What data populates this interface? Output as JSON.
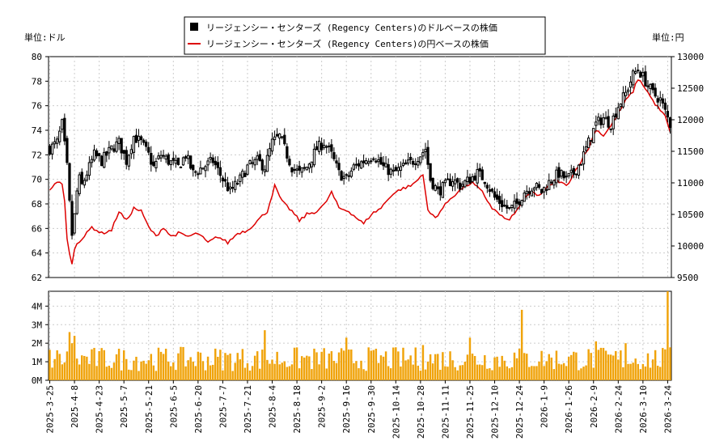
{
  "chart_data": {
    "type": "candlestick",
    "legend": [
      {
        "label": "リージェンシー・センターズ (Regency Centers)のドルベースの株価",
        "color": "#000000",
        "marker": "square"
      },
      {
        "label": "リージェンシー・センターズ (Regency Centers)の円ベースの株価",
        "color": "#dd0000",
        "marker": "line"
      }
    ],
    "left_unit": "単位:ドル",
    "right_unit": "単位:円",
    "price_axis_usd": {
      "min": 62,
      "max": 80,
      "ticks": [
        62,
        64,
        66,
        68,
        70,
        72,
        74,
        76,
        78,
        80
      ]
    },
    "price_axis_jpy": {
      "min": 9500,
      "max": 13000,
      "ticks": [
        9500,
        10000,
        10500,
        11000,
        11500,
        12000,
        12500,
        13000
      ]
    },
    "volume_axis": {
      "min": 0,
      "max": 4800000,
      "ticks": [
        0,
        1000000,
        2000000,
        3000000,
        4000000
      ],
      "tick_labels": [
        "0M",
        "1M",
        "2M",
        "3M",
        "4M"
      ]
    },
    "x_tick_labels": [
      "2025-3-25",
      "2025-4-8",
      "2025-4-23",
      "2025-5-7",
      "2025-5-21",
      "2025-6-5",
      "2025-6-20",
      "2025-7-7",
      "2025-7-21",
      "2025-8-4",
      "2025-8-18",
      "2025-9-2",
      "2025-9-16",
      "2025-9-30",
      "2025-10-14",
      "2025-10-28",
      "2025-11-11",
      "2025-11-25",
      "2025-12-10",
      "2025-12-24",
      "2026-1-9",
      "2026-1-26",
      "2026-2-9",
      "2026-2-24",
      "2026-3-10",
      "2026-3-24"
    ],
    "x_tick_index": [
      0,
      10,
      20,
      30,
      40,
      50,
      60,
      70,
      80,
      90,
      100,
      110,
      120,
      130,
      140,
      150,
      160,
      170,
      180,
      190,
      200,
      210,
      220,
      230,
      240,
      250
    ],
    "n_days": 252,
    "usd_close_anchors": [
      [
        0,
        72.5
      ],
      [
        3,
        73.0
      ],
      [
        5,
        74.5
      ],
      [
        7,
        71.0
      ],
      [
        8,
        68.0
      ],
      [
        9,
        65.5
      ],
      [
        10,
        67.0
      ],
      [
        11,
        69.0
      ],
      [
        12,
        70.0
      ],
      [
        13,
        69.5
      ],
      [
        16,
        71.0
      ],
      [
        18,
        72.0
      ],
      [
        21,
        71.5
      ],
      [
        25,
        72.5
      ],
      [
        28,
        73.0
      ],
      [
        31,
        71.5
      ],
      [
        34,
        73.5
      ],
      [
        37,
        73.0
      ],
      [
        40,
        72.0
      ],
      [
        42,
        71.0
      ],
      [
        45,
        72.0
      ],
      [
        48,
        71.5
      ],
      [
        52,
        71.0
      ],
      [
        55,
        72.0
      ],
      [
        58,
        70.5
      ],
      [
        62,
        71.0
      ],
      [
        66,
        71.5
      ],
      [
        70,
        70.0
      ],
      [
        73,
        69.0
      ],
      [
        77,
        70.0
      ],
      [
        80,
        71.0
      ],
      [
        84,
        71.5
      ],
      [
        87,
        71.0
      ],
      [
        90,
        73.0
      ],
      [
        93,
        73.5
      ],
      [
        95,
        72.5
      ],
      [
        98,
        71.0
      ],
      [
        101,
        70.5
      ],
      [
        104,
        71.0
      ],
      [
        108,
        72.5
      ],
      [
        111,
        73.0
      ],
      [
        114,
        72.0
      ],
      [
        117,
        70.5
      ],
      [
        120,
        70.0
      ],
      [
        123,
        71.0
      ],
      [
        127,
        71.5
      ],
      [
        131,
        72.0
      ],
      [
        135,
        71.0
      ],
      [
        139,
        70.5
      ],
      [
        143,
        71.0
      ],
      [
        147,
        71.5
      ],
      [
        150,
        72.0
      ],
      [
        152,
        72.5
      ],
      [
        154,
        70.0
      ],
      [
        157,
        69.0
      ],
      [
        160,
        69.5
      ],
      [
        163,
        70.0
      ],
      [
        166,
        69.5
      ],
      [
        170,
        70.0
      ],
      [
        173,
        70.5
      ],
      [
        176,
        70.0
      ],
      [
        180,
        68.5
      ],
      [
        183,
        68.0
      ],
      [
        186,
        67.5
      ],
      [
        189,
        68.0
      ],
      [
        192,
        69.0
      ],
      [
        196,
        69.5
      ],
      [
        199,
        69.0
      ],
      [
        203,
        70.0
      ],
      [
        206,
        70.5
      ],
      [
        209,
        70.0
      ],
      [
        212,
        70.5
      ],
      [
        215,
        71.5
      ],
      [
        218,
        73.0
      ],
      [
        221,
        74.5
      ],
      [
        224,
        75.0
      ],
      [
        227,
        74.5
      ],
      [
        230,
        76.0
      ],
      [
        233,
        77.0
      ],
      [
        236,
        78.5
      ],
      [
        238,
        79.0
      ],
      [
        241,
        78.0
      ],
      [
        244,
        77.0
      ],
      [
        247,
        76.5
      ],
      [
        249,
        75.5
      ],
      [
        251,
        74.5
      ]
    ],
    "jpy_close_anchors": [
      [
        0,
        10900
      ],
      [
        3,
        11000
      ],
      [
        5,
        11000
      ],
      [
        6,
        10700
      ],
      [
        7,
        10100
      ],
      [
        8,
        9900
      ],
      [
        9,
        9700
      ],
      [
        10,
        9950
      ],
      [
        11,
        10050
      ],
      [
        14,
        10150
      ],
      [
        17,
        10300
      ],
      [
        21,
        10200
      ],
      [
        25,
        10250
      ],
      [
        28,
        10550
      ],
      [
        31,
        10400
      ],
      [
        34,
        10600
      ],
      [
        37,
        10550
      ],
      [
        40,
        10300
      ],
      [
        43,
        10150
      ],
      [
        46,
        10300
      ],
      [
        49,
        10150
      ],
      [
        52,
        10200
      ],
      [
        56,
        10150
      ],
      [
        60,
        10200
      ],
      [
        64,
        10050
      ],
      [
        68,
        10150
      ],
      [
        72,
        10050
      ],
      [
        76,
        10200
      ],
      [
        80,
        10250
      ],
      [
        84,
        10400
      ],
      [
        88,
        10550
      ],
      [
        91,
        10950
      ],
      [
        94,
        10700
      ],
      [
        98,
        10550
      ],
      [
        101,
        10400
      ],
      [
        104,
        10500
      ],
      [
        108,
        10550
      ],
      [
        111,
        10650
      ],
      [
        114,
        10850
      ],
      [
        117,
        10600
      ],
      [
        121,
        10550
      ],
      [
        124,
        10450
      ],
      [
        127,
        10350
      ],
      [
        130,
        10500
      ],
      [
        134,
        10600
      ],
      [
        138,
        10800
      ],
      [
        142,
        10900
      ],
      [
        146,
        10950
      ],
      [
        149,
        11050
      ],
      [
        151,
        11150
      ],
      [
        153,
        10550
      ],
      [
        156,
        10450
      ],
      [
        159,
        10600
      ],
      [
        162,
        10750
      ],
      [
        165,
        10850
      ],
      [
        168,
        10950
      ],
      [
        171,
        11000
      ],
      [
        175,
        10850
      ],
      [
        179,
        10600
      ],
      [
        182,
        10500
      ],
      [
        185,
        10400
      ],
      [
        188,
        10500
      ],
      [
        191,
        10700
      ],
      [
        195,
        10850
      ],
      [
        198,
        10800
      ],
      [
        202,
        10950
      ],
      [
        205,
        11050
      ],
      [
        209,
        10950
      ],
      [
        212,
        11150
      ],
      [
        215,
        11350
      ],
      [
        218,
        11550
      ],
      [
        221,
        11850
      ],
      [
        224,
        11750
      ],
      [
        227,
        11900
      ],
      [
        230,
        12100
      ],
      [
        233,
        12300
      ],
      [
        236,
        12450
      ],
      [
        238,
        12650
      ],
      [
        241,
        12500
      ],
      [
        244,
        12300
      ],
      [
        247,
        12150
      ],
      [
        249,
        12050
      ],
      [
        251,
        11800
      ]
    ],
    "volume_note": "daily volumes mostly 0.5M–1.9M; spikes near 2.7M (day 87), 2.6M (day 8), 3.8M (day 191), 4.8M (day 250)"
  }
}
